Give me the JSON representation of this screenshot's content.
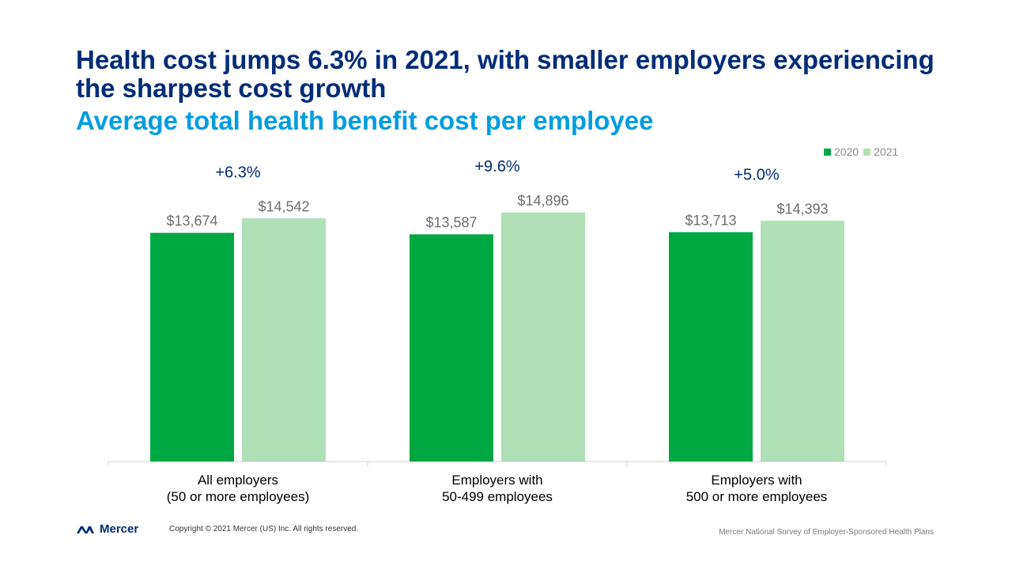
{
  "header": {
    "title": "Health cost jumps 6.3% in 2021, with smaller employers experiencing the sharpest cost growth",
    "subtitle": "Average total health benefit cost per employee"
  },
  "legend": {
    "items": [
      {
        "label": "2020",
        "color": "#00a843"
      },
      {
        "label": "2021",
        "color": "#b0dfb5"
      }
    ]
  },
  "chart_data": {
    "type": "bar",
    "categories": [
      [
        "All employers",
        "(50 or more employees)"
      ],
      [
        "Employers with",
        "50-499 employees"
      ],
      [
        "Employers with",
        "500 or more employees"
      ]
    ],
    "series": [
      {
        "name": "2020",
        "color": "#00a843",
        "values": [
          13674,
          13587,
          13713
        ],
        "labels": [
          "$13,674",
          "$13,587",
          "$13,713"
        ]
      },
      {
        "name": "2021",
        "color": "#b0dfb5",
        "values": [
          14542,
          14896,
          14393
        ],
        "labels": [
          "$14,542",
          "$14,896",
          "$14,393"
        ]
      }
    ],
    "annotations": [
      "+6.3%",
      "+9.6%",
      "+5.0%"
    ],
    "ylim": [
      0,
      17200
    ],
    "grid": false,
    "legend_position": "top-right"
  },
  "footer": {
    "brand": "Mercer",
    "logo_icon": "mercer-logo-icon",
    "copyright": "Copyright © 2021 Mercer (US) Inc. All rights reserved.",
    "source": "Mercer National Survey of Employer-Sponsored Health Plans"
  }
}
